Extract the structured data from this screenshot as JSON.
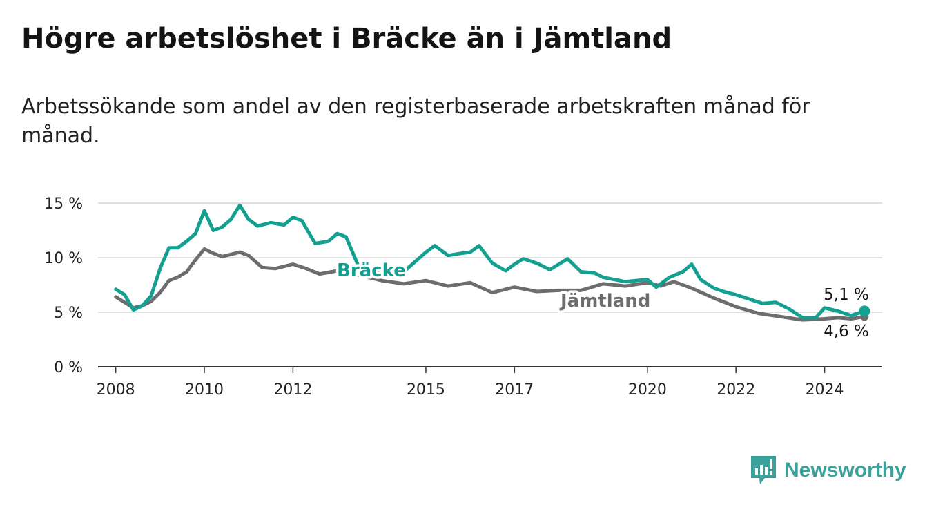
{
  "title": "Högre arbetslöshet i Bräcke än i Jämtland",
  "subtitle": "Arbetssökande som andel av den registerbaserade arbetskraften månad för månad.",
  "brand": {
    "name": "Newsworthy",
    "color": "#3aa29a",
    "icon": "bar-chart-exclamation-icon"
  },
  "colors": {
    "bracke": "#13a090",
    "jamtland": "#6d6d70",
    "grid": "#d6d6d6",
    "axis": "#333333"
  },
  "chart_data": {
    "type": "line",
    "title": "Högre arbetslöshet i Bräcke än i Jämtland",
    "ylabel": "",
    "xlabel": "",
    "ylim": [
      0,
      15
    ],
    "xlim": [
      2007.6,
      2025.3
    ],
    "y_ticks": [
      0,
      5,
      10,
      15
    ],
    "y_tick_labels": [
      "0 %",
      "5 %",
      "10 %",
      "15 %"
    ],
    "x_ticks": [
      2008,
      2010,
      2012,
      2015,
      2017,
      2020,
      2022,
      2024
    ],
    "x_tick_labels": [
      "2008",
      "2010",
      "2012",
      "2015",
      "2017",
      "2020",
      "2022",
      "2024"
    ],
    "grid": true,
    "series": [
      {
        "name": "Bräcke",
        "color": "#13a090",
        "x": [
          2008.0,
          2008.2,
          2008.4,
          2008.6,
          2008.8,
          2009.0,
          2009.2,
          2009.4,
          2009.6,
          2009.8,
          2010.0,
          2010.2,
          2010.4,
          2010.6,
          2010.8,
          2011.0,
          2011.2,
          2011.5,
          2011.8,
          2012.0,
          2012.2,
          2012.5,
          2012.8,
          2013.0,
          2013.2,
          2013.5,
          2014.0,
          2014.5,
          2015.0,
          2015.2,
          2015.5,
          2015.8,
          2016.0,
          2016.2,
          2016.5,
          2016.8,
          2017.0,
          2017.2,
          2017.5,
          2017.8,
          2018.0,
          2018.2,
          2018.5,
          2018.8,
          2019.0,
          2019.5,
          2020.0,
          2020.2,
          2020.5,
          2020.8,
          2021.0,
          2021.2,
          2021.5,
          2021.8,
          2022.0,
          2022.3,
          2022.6,
          2022.9,
          2023.2,
          2023.5,
          2023.8,
          2024.0,
          2024.3,
          2024.6,
          2024.9
        ],
        "y": [
          7.1,
          6.6,
          5.2,
          5.6,
          6.5,
          9.0,
          10.9,
          10.9,
          11.5,
          12.2,
          14.3,
          12.5,
          12.8,
          13.5,
          14.8,
          13.5,
          12.9,
          13.2,
          13.0,
          13.7,
          13.4,
          11.3,
          11.5,
          12.2,
          11.9,
          9.0,
          8.5,
          8.7,
          10.5,
          11.1,
          10.2,
          10.4,
          10.5,
          11.1,
          9.5,
          8.8,
          9.4,
          9.9,
          9.5,
          8.9,
          9.4,
          9.9,
          8.7,
          8.6,
          8.2,
          7.8,
          8.0,
          7.3,
          8.2,
          8.7,
          9.4,
          8.0,
          7.2,
          6.8,
          6.6,
          6.2,
          5.8,
          5.9,
          5.3,
          4.5,
          4.5,
          5.4,
          5.1,
          4.7,
          5.1
        ]
      },
      {
        "name": "Jämtland",
        "color": "#6d6d70",
        "x": [
          2008.0,
          2008.2,
          2008.4,
          2008.6,
          2008.8,
          2009.0,
          2009.2,
          2009.4,
          2009.6,
          2009.8,
          2010.0,
          2010.2,
          2010.4,
          2010.6,
          2010.8,
          2011.0,
          2011.3,
          2011.6,
          2012.0,
          2012.3,
          2012.6,
          2013.0,
          2013.5,
          2014.0,
          2014.5,
          2015.0,
          2015.5,
          2016.0,
          2016.5,
          2017.0,
          2017.5,
          2018.0,
          2018.5,
          2019.0,
          2019.5,
          2020.0,
          2020.3,
          2020.6,
          2021.0,
          2021.5,
          2022.0,
          2022.5,
          2023.0,
          2023.5,
          2024.0,
          2024.3,
          2024.6,
          2024.9
        ],
        "y": [
          6.4,
          5.9,
          5.4,
          5.6,
          6.0,
          6.8,
          7.9,
          8.2,
          8.7,
          9.8,
          10.8,
          10.4,
          10.1,
          10.3,
          10.5,
          10.2,
          9.1,
          9.0,
          9.4,
          9.0,
          8.5,
          8.8,
          8.4,
          7.9,
          7.6,
          7.9,
          7.4,
          7.7,
          6.8,
          7.3,
          6.9,
          7.0,
          7.0,
          7.6,
          7.4,
          7.7,
          7.4,
          7.8,
          7.2,
          6.3,
          5.5,
          4.9,
          4.6,
          4.3,
          4.4,
          4.5,
          4.4,
          4.6
        ]
      }
    ],
    "annotations": {
      "bracke_label": "Bräcke",
      "jamtland_label": "Jämtland",
      "bracke_last": "5,1 %",
      "jamtland_last": "4,6 %"
    }
  }
}
